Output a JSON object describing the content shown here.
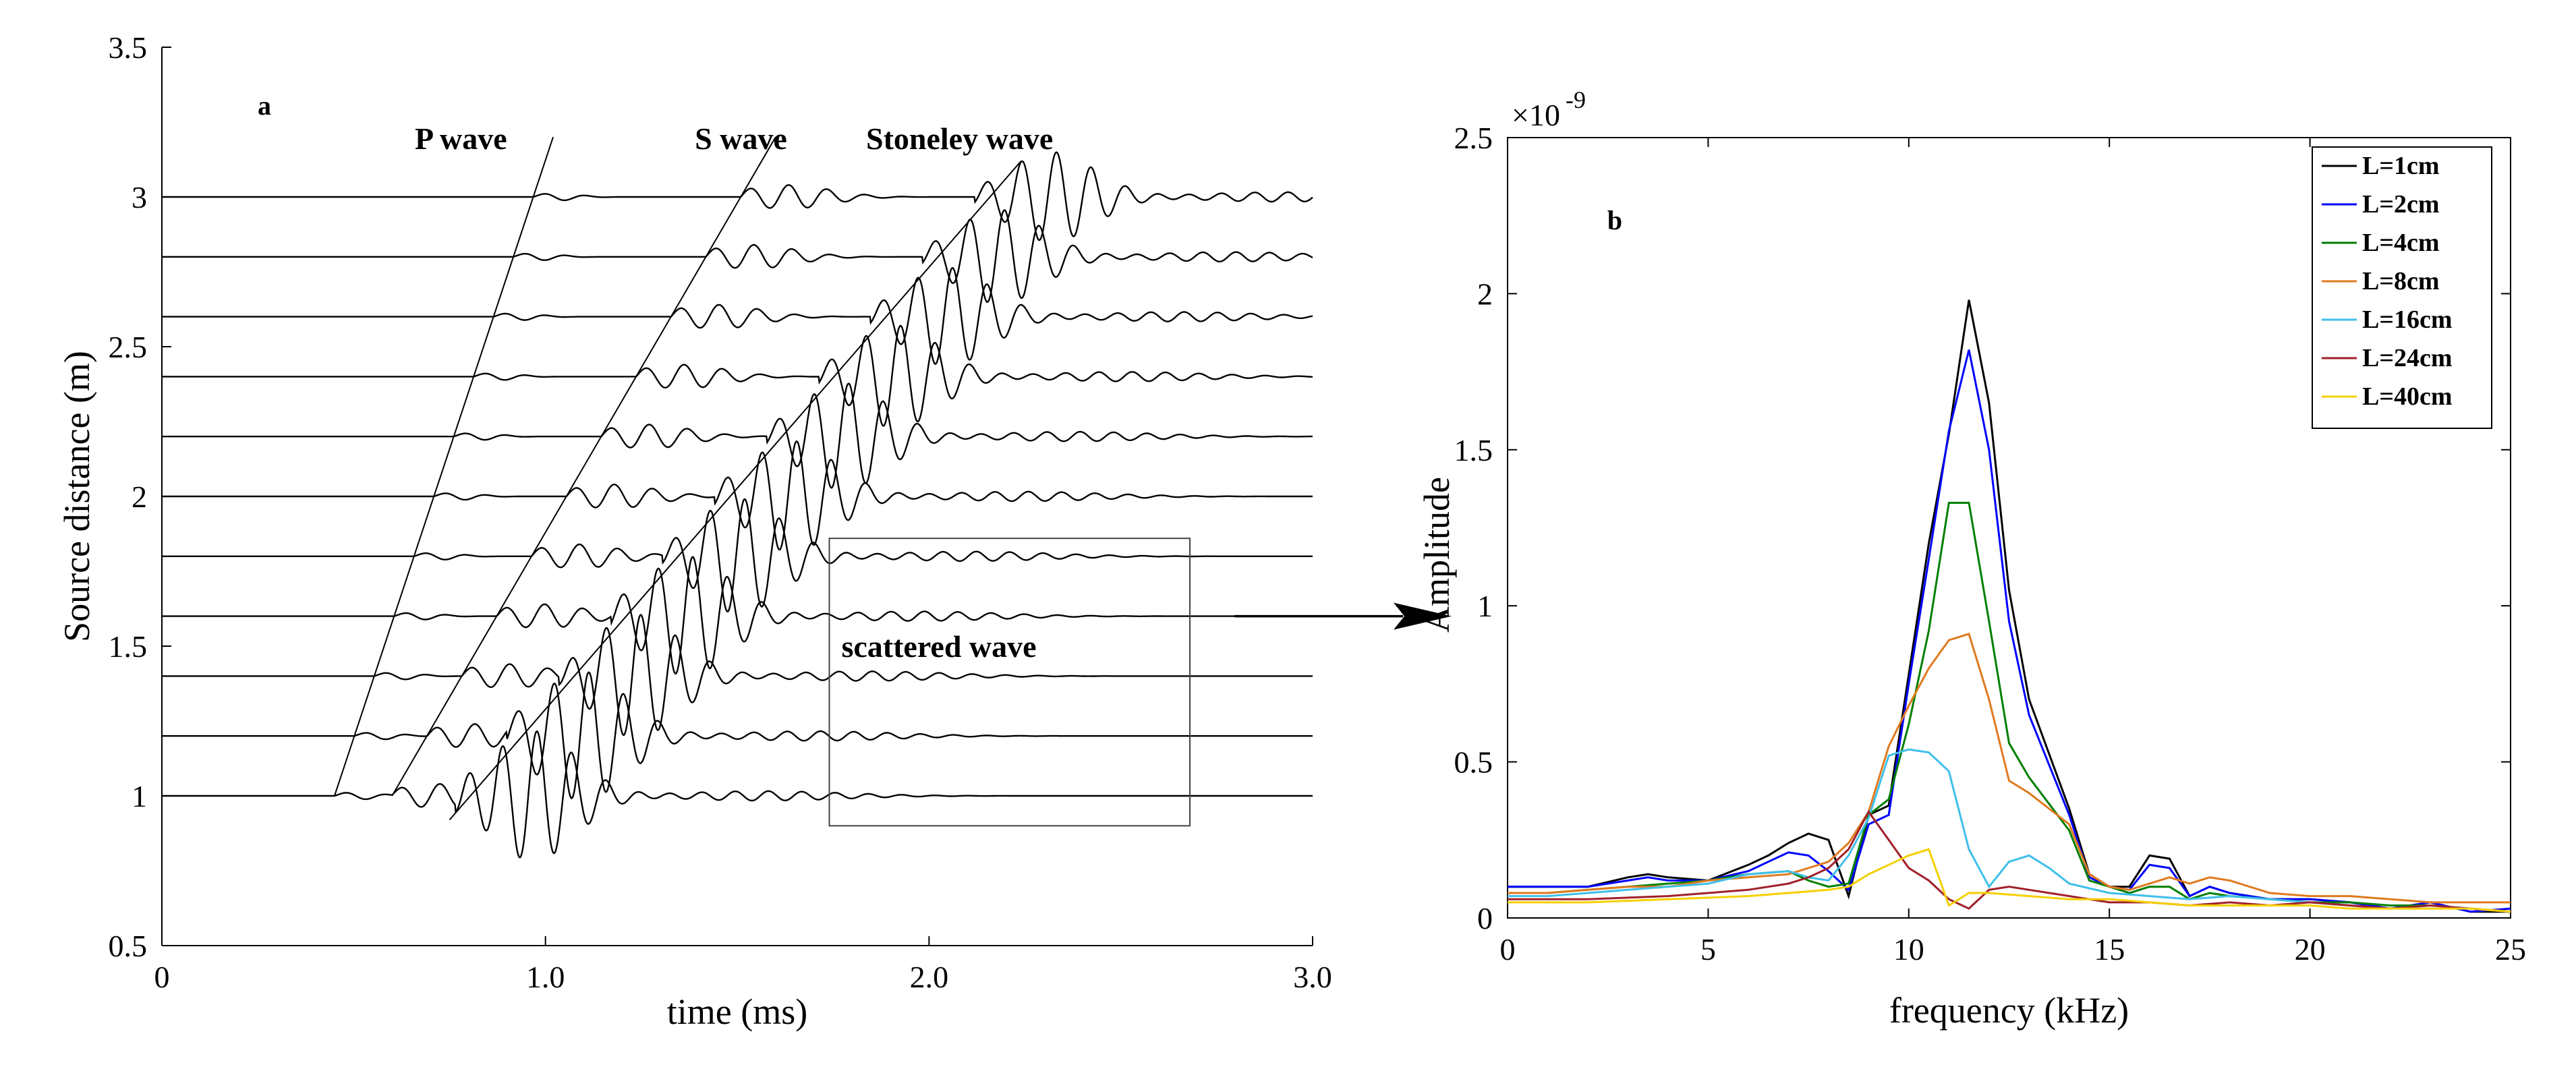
{
  "chart_data": [
    {
      "type": "line",
      "panel_label": "a",
      "title": "",
      "xlabel": "time (ms)",
      "ylabel": "Source distance (m)",
      "xlim": [
        0,
        3.0
      ],
      "ylim": [
        0.5,
        3.5
      ],
      "x_ticks": [
        0,
        1.0,
        2.0,
        3.0
      ],
      "x_tick_labels": [
        "0",
        "1.0",
        "2.0",
        "3.0"
      ],
      "y_ticks": [
        0.5,
        1,
        1.5,
        2,
        2.5,
        3,
        3.5
      ],
      "y_tick_labels": [
        "0.5",
        "1",
        "1.5",
        "2",
        "2.5",
        "3",
        "3.5"
      ],
      "trace_offsets": [
        1.0,
        1.2,
        1.4,
        1.6,
        1.8,
        2.0,
        2.2,
        2.4,
        2.6,
        2.8,
        3.0
      ],
      "trace_start_time": 0.0,
      "trace_end_time": 3.0,
      "moveout_lines": [
        {
          "label": "P wave",
          "from": [
            0.45,
            1.0
          ],
          "to": [
            1.02,
            3.2
          ]
        },
        {
          "label": "S wave",
          "from": [
            0.6,
            1.0
          ],
          "to": [
            1.6,
            3.2
          ]
        },
        {
          "label": "Stoneley wave",
          "from": [
            0.75,
            0.92
          ],
          "to": [
            2.24,
            3.12
          ]
        }
      ],
      "wave_labels": [
        "P wave",
        "S wave",
        "Stoneley wave"
      ],
      "scatter_box": {
        "label": "scattered wave",
        "x": [
          1.74,
          2.68
        ],
        "y": [
          0.9,
          1.86
        ]
      },
      "arrow_target": "Amplitude spectrum (panel b)"
    },
    {
      "type": "line",
      "panel_label": "b",
      "title": "",
      "xlabel": "frequency (kHz)",
      "ylabel": "Amplitude",
      "exponent_label": "×10",
      "exponent_power": "-9",
      "xlim": [
        0,
        25
      ],
      "ylim": [
        0,
        2.5
      ],
      "x_ticks": [
        0,
        5,
        10,
        15,
        20,
        25
      ],
      "x_tick_labels": [
        "0",
        "5",
        "10",
        "15",
        "20",
        "25"
      ],
      "y_ticks": [
        0,
        0.5,
        1,
        1.5,
        2,
        2.5
      ],
      "y_tick_labels": [
        "0",
        "0.5",
        "1",
        "1.5",
        "2",
        "2.5"
      ],
      "legend_position": "top-right",
      "series": [
        {
          "name": "L=1cm",
          "color": "#000000",
          "x": [
            0,
            1,
            2,
            3,
            3.5,
            4,
            5,
            6,
            6.5,
            7,
            7.5,
            8,
            8.5,
            9,
            9.5,
            10,
            10.5,
            11,
            11.5,
            12,
            12.5,
            13,
            14,
            14.5,
            15,
            15.5,
            16,
            16.5,
            17,
            17.5,
            18,
            19,
            20,
            21,
            22,
            23,
            24,
            25
          ],
          "y": [
            0.1,
            0.1,
            0.1,
            0.13,
            0.14,
            0.13,
            0.12,
            0.17,
            0.2,
            0.24,
            0.27,
            0.25,
            0.07,
            0.33,
            0.36,
            0.78,
            1.2,
            1.55,
            1.98,
            1.65,
            1.05,
            0.7,
            0.35,
            0.14,
            0.1,
            0.1,
            0.2,
            0.19,
            0.07,
            0.1,
            0.08,
            0.06,
            0.06,
            0.05,
            0.03,
            0.05,
            0.02,
            0.02
          ]
        },
        {
          "name": "L=2cm",
          "color": "#0000ff",
          "x": [
            0,
            1,
            2,
            3,
            3.5,
            4,
            5,
            6,
            6.5,
            7,
            7.5,
            8,
            8.5,
            9,
            9.5,
            10,
            10.5,
            11,
            11.5,
            12,
            12.5,
            13,
            14,
            14.5,
            15,
            15.5,
            16,
            16.5,
            17,
            17.5,
            18,
            19,
            20,
            21,
            22,
            23,
            24,
            25
          ],
          "y": [
            0.1,
            0.1,
            0.1,
            0.12,
            0.13,
            0.12,
            0.12,
            0.15,
            0.18,
            0.21,
            0.2,
            0.15,
            0.09,
            0.3,
            0.33,
            0.75,
            1.15,
            1.56,
            1.82,
            1.5,
            0.95,
            0.65,
            0.33,
            0.13,
            0.1,
            0.09,
            0.17,
            0.16,
            0.07,
            0.1,
            0.08,
            0.06,
            0.06,
            0.05,
            0.03,
            0.05,
            0.02,
            0.03
          ]
        },
        {
          "name": "L=4cm",
          "color": "#007f00",
          "x": [
            0,
            1,
            2,
            3,
            4,
            5,
            6,
            7,
            7.5,
            8,
            8.5,
            9,
            9.5,
            10,
            10.5,
            11,
            11.5,
            12,
            12.5,
            13,
            14,
            14.5,
            15,
            15.5,
            16,
            16.5,
            17,
            17.5,
            18,
            19,
            20,
            21,
            22,
            23,
            24,
            25
          ],
          "y": [
            0.08,
            0.08,
            0.09,
            0.1,
            0.11,
            0.12,
            0.14,
            0.15,
            0.12,
            0.1,
            0.11,
            0.33,
            0.38,
            0.62,
            0.92,
            1.33,
            1.33,
            0.95,
            0.56,
            0.45,
            0.28,
            0.12,
            0.1,
            0.08,
            0.1,
            0.1,
            0.06,
            0.08,
            0.07,
            0.06,
            0.05,
            0.05,
            0.04,
            0.04,
            0.03,
            0.02
          ]
        },
        {
          "name": "L=8cm",
          "color": "#e07a1f",
          "x": [
            0,
            1,
            2,
            3,
            4,
            5,
            6,
            7,
            7.5,
            8,
            8.5,
            9,
            9.5,
            10,
            10.5,
            11,
            11.5,
            12,
            12.5,
            13,
            14,
            14.5,
            15,
            15.5,
            16,
            16.5,
            17,
            17.5,
            18,
            19,
            20,
            21,
            22,
            23,
            24,
            25
          ],
          "y": [
            0.08,
            0.08,
            0.09,
            0.1,
            0.1,
            0.12,
            0.13,
            0.14,
            0.16,
            0.18,
            0.24,
            0.34,
            0.55,
            0.68,
            0.8,
            0.89,
            0.91,
            0.7,
            0.44,
            0.4,
            0.3,
            0.14,
            0.1,
            0.09,
            0.11,
            0.13,
            0.11,
            0.13,
            0.12,
            0.08,
            0.07,
            0.07,
            0.06,
            0.05,
            0.05,
            0.05
          ]
        },
        {
          "name": "L=16cm",
          "color": "#3fbfea",
          "x": [
            0,
            1,
            2,
            3,
            4,
            5,
            6,
            7,
            7.5,
            8,
            8.5,
            9,
            9.5,
            10,
            10.5,
            11,
            11.5,
            12,
            12.5,
            13,
            13.5,
            14,
            15,
            16,
            17,
            18,
            19,
            20,
            21,
            22,
            23,
            24,
            25
          ],
          "y": [
            0.07,
            0.07,
            0.08,
            0.09,
            0.1,
            0.11,
            0.14,
            0.15,
            0.13,
            0.12,
            0.2,
            0.32,
            0.52,
            0.54,
            0.53,
            0.47,
            0.22,
            0.1,
            0.18,
            0.2,
            0.16,
            0.11,
            0.08,
            0.07,
            0.06,
            0.07,
            0.06,
            0.05,
            0.04,
            0.03,
            0.04,
            0.03,
            0.02
          ]
        },
        {
          "name": "L=24cm",
          "color": "#a0202a",
          "x": [
            0,
            2,
            4,
            5,
            6,
            7,
            7.5,
            8,
            8.5,
            9,
            9.5,
            10,
            10.5,
            11,
            11.5,
            12,
            12.5,
            13,
            14,
            15,
            16,
            17,
            18,
            19,
            20,
            21,
            22,
            23,
            24,
            25
          ],
          "y": [
            0.06,
            0.06,
            0.07,
            0.08,
            0.09,
            0.11,
            0.13,
            0.16,
            0.22,
            0.34,
            0.25,
            0.16,
            0.12,
            0.06,
            0.03,
            0.09,
            0.1,
            0.09,
            0.07,
            0.05,
            0.05,
            0.04,
            0.05,
            0.04,
            0.05,
            0.04,
            0.03,
            0.04,
            0.03,
            0.02
          ]
        },
        {
          "name": "L=40cm",
          "color": "#f5d000",
          "x": [
            0,
            2,
            4,
            6,
            7,
            8,
            8.5,
            9,
            9.5,
            10,
            10.5,
            11,
            11.5,
            12,
            13,
            14,
            15,
            16,
            17,
            18,
            19,
            20,
            21,
            22,
            23,
            24,
            25
          ],
          "y": [
            0.05,
            0.05,
            0.06,
            0.07,
            0.08,
            0.09,
            0.1,
            0.14,
            0.17,
            0.2,
            0.22,
            0.04,
            0.08,
            0.08,
            0.07,
            0.06,
            0.06,
            0.05,
            0.04,
            0.04,
            0.04,
            0.04,
            0.03,
            0.03,
            0.03,
            0.03,
            0.02
          ]
        }
      ]
    }
  ]
}
